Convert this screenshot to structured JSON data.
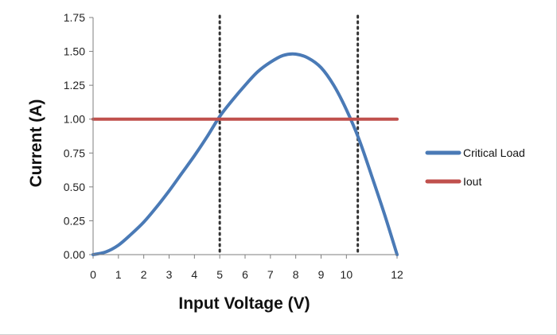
{
  "chart_data": {
    "type": "line",
    "title": "",
    "xlabel": "Input Voltage (V)",
    "ylabel": "Current   (A)",
    "xlim": [
      0,
      12
    ],
    "ylim": [
      0,
      1.75
    ],
    "x_ticks": [
      "0",
      "1",
      "2",
      "3",
      "4",
      "5",
      "6",
      "7",
      "8",
      "9",
      "10",
      "12"
    ],
    "x_tick_values": [
      0,
      1,
      2,
      3,
      4,
      5,
      6,
      7,
      8,
      9,
      10,
      12
    ],
    "y_ticks": [
      "0.00",
      "0.25",
      "0.50",
      "0.75",
      "1.00",
      "1.25",
      "1.50",
      "1.75"
    ],
    "y_tick_values": [
      0,
      0.25,
      0.5,
      0.75,
      1,
      1.25,
      1.5,
      1.75
    ],
    "grid": false,
    "legend_position": "right",
    "series": [
      {
        "name": "Critical Load",
        "color": "#4a7ab6",
        "x": [
          0,
          0.5,
          1,
          1.5,
          2,
          2.5,
          3,
          3.5,
          4,
          4.5,
          5,
          5.5,
          6,
          6.5,
          7,
          7.5,
          8,
          8.5,
          9,
          9.5,
          10,
          10.5,
          11,
          11.5,
          12
        ],
        "y": [
          0,
          0.02,
          0.07,
          0.15,
          0.24,
          0.35,
          0.47,
          0.6,
          0.73,
          0.87,
          1.02,
          1.14,
          1.25,
          1.35,
          1.42,
          1.47,
          1.48,
          1.45,
          1.38,
          1.25,
          1.07,
          0.85,
          0.58,
          0.3,
          0
        ]
      },
      {
        "name": "Iout",
        "color": "#c0504d",
        "x": [
          0,
          12
        ],
        "y": [
          1,
          1
        ]
      }
    ],
    "reference_lines": [
      {
        "axis": "x",
        "value": 5,
        "style": "dotted",
        "color": "#333333"
      },
      {
        "axis": "x",
        "value": 10.45,
        "style": "dotted",
        "color": "#333333"
      }
    ]
  }
}
